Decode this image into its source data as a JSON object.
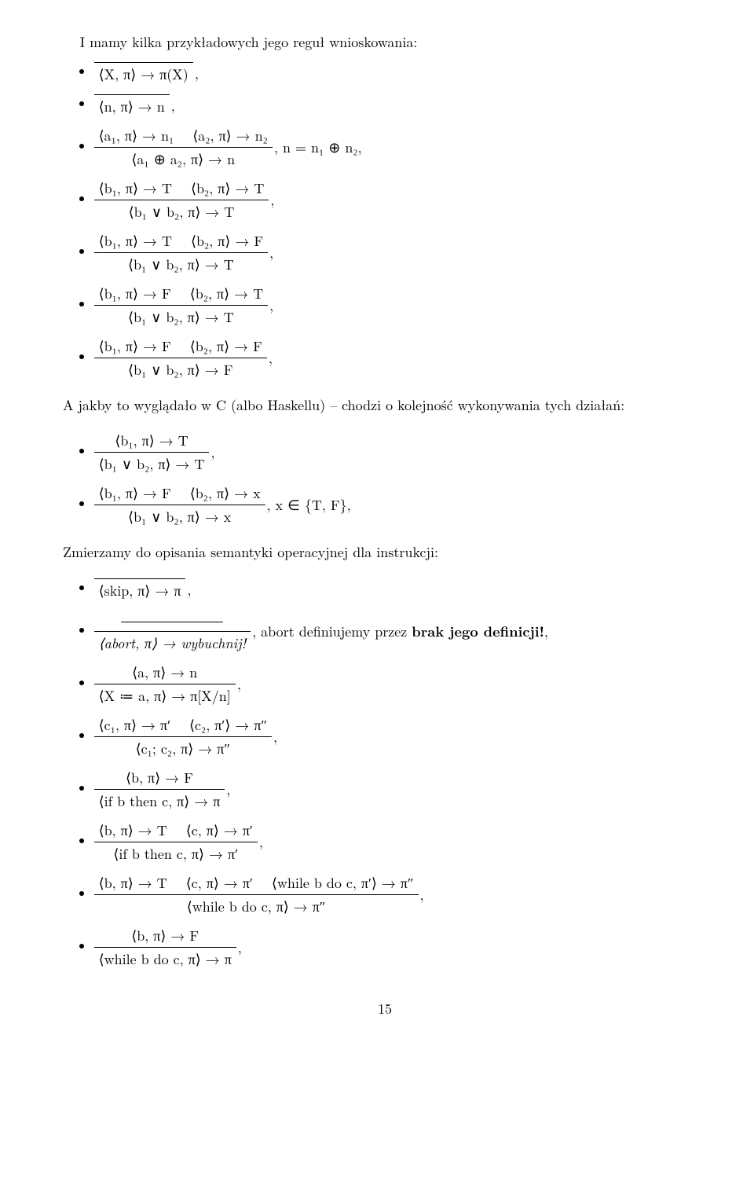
{
  "intro": "I mamy kilka przykładowych jego reguł wnioskowania:",
  "rule01": {
    "num": "",
    "den": "⟨X, π⟩ → π(X)",
    "side": ","
  },
  "rule02": {
    "num": "",
    "den": "⟨n, π⟩ → n",
    "side": ","
  },
  "rule03": {
    "p1": "⟨a₁, π⟩ → n₁",
    "p2": "⟨a₂, π⟩ → n₂",
    "den": "⟨a₁ ⊕ a₂, π⟩ → n",
    "side": ", n = n₁ ⊕ n₂,"
  },
  "rule04": {
    "p1": "⟨b₁, π⟩ → T",
    "p2": "⟨b₂, π⟩ → T",
    "den": "⟨b₁ ∨ b₂, π⟩ → T",
    "side": ","
  },
  "rule05": {
    "p1": "⟨b₁, π⟩ → T",
    "p2": "⟨b₂, π⟩ → F",
    "den": "⟨b₁ ∨ b₂, π⟩ → T",
    "side": ","
  },
  "rule06": {
    "p1": "⟨b₁, π⟩ → F",
    "p2": "⟨b₂, π⟩ → T",
    "den": "⟨b₁ ∨ b₂, π⟩ → T",
    "side": ","
  },
  "rule07": {
    "p1": "⟨b₁, π⟩ → F",
    "p2": "⟨b₂, π⟩ → F",
    "den": "⟨b₁ ∨ b₂, π⟩ → F",
    "side": ","
  },
  "haskell_note": "A jakby to wyglądało w C (albo Haskellu) – chodzi o kolejność wykonywania tych działań:",
  "rule08": {
    "p1": "⟨b₁, π⟩ → T",
    "den": "⟨b₁ ∨ b₂, π⟩ → T",
    "side": ","
  },
  "rule09": {
    "p1": "⟨b₁, π⟩ → F",
    "p2": "⟨b₂, π⟩ → x",
    "den": "⟨b₁ ∨ b₂, π⟩ → x",
    "side": ", x ∈ {T, F},"
  },
  "op_sem": "Zmierzamy do opisania semantyki operacyjnej dla instrukcji:",
  "rule10": {
    "num": "",
    "den": "⟨skip, π⟩ → π",
    "side": ","
  },
  "rule11": {
    "num_strike": true,
    "den": "⟨abort, π⟩ → wybuchnij!",
    "side_pre": ", abort definiujemy przez ",
    "side_bold": "brak jego definicji!",
    "side_post": ","
  },
  "rule12": {
    "p1": "⟨a, π⟩ → n",
    "den": "⟨X ≔ a, π⟩ → π[X/n]",
    "side": ","
  },
  "rule13": {
    "p1": "⟨c₁, π⟩ → π′",
    "p2": "⟨c₂, π′⟩ → π″",
    "den": "⟨c₁; c₂, π⟩ → π″",
    "side": ","
  },
  "rule14": {
    "p1": "⟨b, π⟩ → F",
    "den": "⟨if b then c, π⟩ → π",
    "side": ","
  },
  "rule15": {
    "p1": "⟨b, π⟩ → T",
    "p2": "⟨c, π⟩ → π′",
    "den": "⟨if b then c, π⟩ → π′",
    "side": ","
  },
  "rule16": {
    "p1": "⟨b, π⟩ → T",
    "p2": "⟨c, π⟩ → π′",
    "p3": "⟨while b do c, π′⟩ → π″",
    "den": "⟨while b do c, π⟩ → π″",
    "side": ","
  },
  "rule17": {
    "p1": "⟨b, π⟩ → F",
    "den": "⟨while b do c, π⟩ → π",
    "side": ","
  },
  "page_number": "15"
}
